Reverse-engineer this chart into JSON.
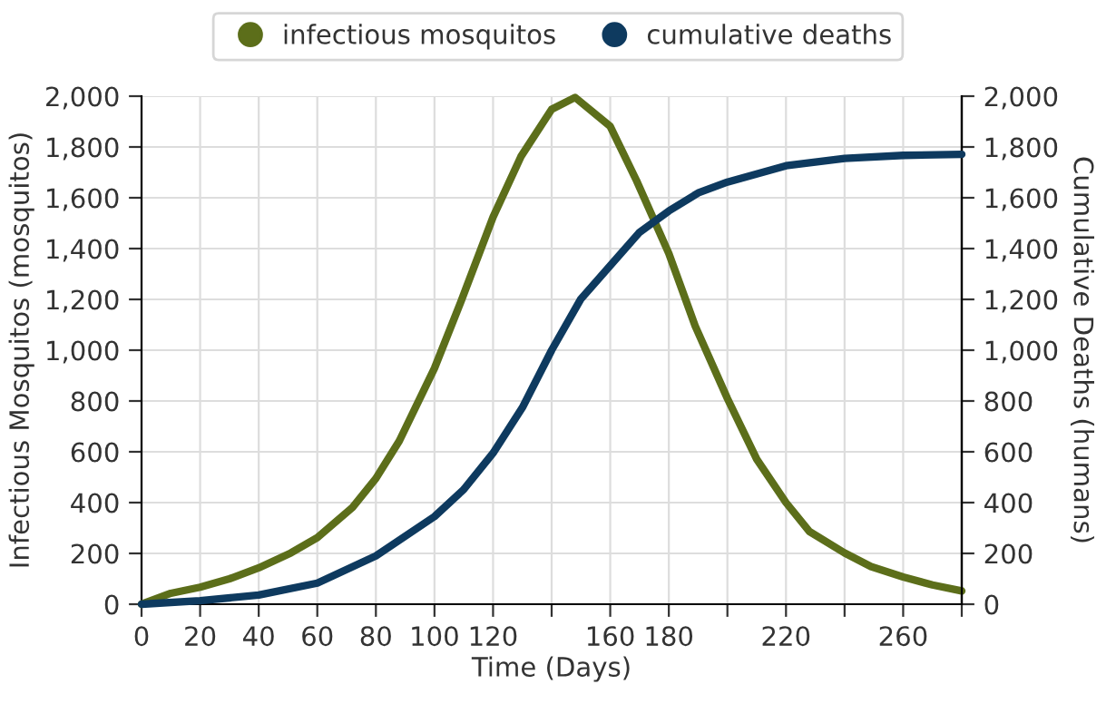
{
  "chart_data": {
    "type": "line",
    "xlabel": "Time (Days)",
    "ylabel": "Infectious Mosquitos (mosquitos)",
    "y2label": "Cumulative Deaths (humans)",
    "xlim": [
      0,
      280
    ],
    "xticks": [
      0,
      20,
      40,
      60,
      80,
      100,
      120,
      {
        "value": 140,
        "label": null
      },
      160,
      180,
      {
        "value": 200,
        "label": null
      },
      220,
      {
        "value": 240,
        "label": null
      },
      260,
      {
        "value": 280,
        "label": null
      }
    ],
    "ylim": [
      0,
      2000
    ],
    "yticks": [
      {
        "value": 0,
        "label": "0"
      },
      {
        "value": 200,
        "label": "200"
      },
      {
        "value": 400,
        "label": "400"
      },
      {
        "value": 600,
        "label": "600"
      },
      {
        "value": 800,
        "label": "800"
      },
      {
        "value": 1000,
        "label": "1,000"
      },
      {
        "value": 1200,
        "label": "1,200"
      },
      {
        "value": 1400,
        "label": "1,400"
      },
      {
        "value": 1600,
        "label": "1,600"
      },
      {
        "value": 1800,
        "label": "1,800"
      },
      {
        "value": 2000,
        "label": "2,000"
      }
    ],
    "y2lim": [
      0,
      2000
    ],
    "y2ticks": [
      {
        "value": 0,
        "label": "0"
      },
      {
        "value": 200,
        "label": "200"
      },
      {
        "value": 400,
        "label": "400"
      },
      {
        "value": 600,
        "label": "600"
      },
      {
        "value": 800,
        "label": "800"
      },
      {
        "value": 1000,
        "label": "1,000"
      },
      {
        "value": 1200,
        "label": "1,200"
      },
      {
        "value": 1400,
        "label": "1,400"
      },
      {
        "value": 1600,
        "label": "1,600"
      },
      {
        "value": 1800,
        "label": "1,800"
      },
      {
        "value": 2000,
        "label": "2,000"
      }
    ],
    "grid": true,
    "legend": "top",
    "marker": "none",
    "line_style": "solid",
    "series": [
      {
        "name": "infectious mosquitos",
        "color": "#5c6e1a",
        "x": [
          0,
          10,
          20,
          30,
          40,
          51,
          60,
          72,
          80,
          88,
          100,
          109,
          120,
          129.5,
          140,
          148,
          160,
          169,
          180,
          189,
          200,
          210,
          220,
          228,
          240,
          249,
          260,
          270,
          280
        ],
        "values": [
          0,
          43,
          67,
          100,
          143,
          202,
          262,
          381,
          495,
          643,
          929,
          1190,
          1524,
          1762,
          1948,
          1995,
          1881,
          1667,
          1381,
          1095,
          810,
          571,
          400,
          286,
          202,
          148,
          107,
          76,
          52
        ]
      },
      {
        "name": "cumulative deaths",
        "color": "#0e3a5f",
        "axis": "y2",
        "x": [
          0,
          20,
          40,
          60,
          80,
          100,
          110,
          120,
          130,
          140,
          150,
          160,
          170,
          180,
          190,
          200,
          220,
          240,
          260,
          280
        ],
        "values": [
          0,
          14,
          36,
          83,
          190,
          345,
          452,
          595,
          774,
          1000,
          1202,
          1333,
          1464,
          1548,
          1619,
          1662,
          1726,
          1755,
          1767,
          1771
        ]
      }
    ]
  }
}
